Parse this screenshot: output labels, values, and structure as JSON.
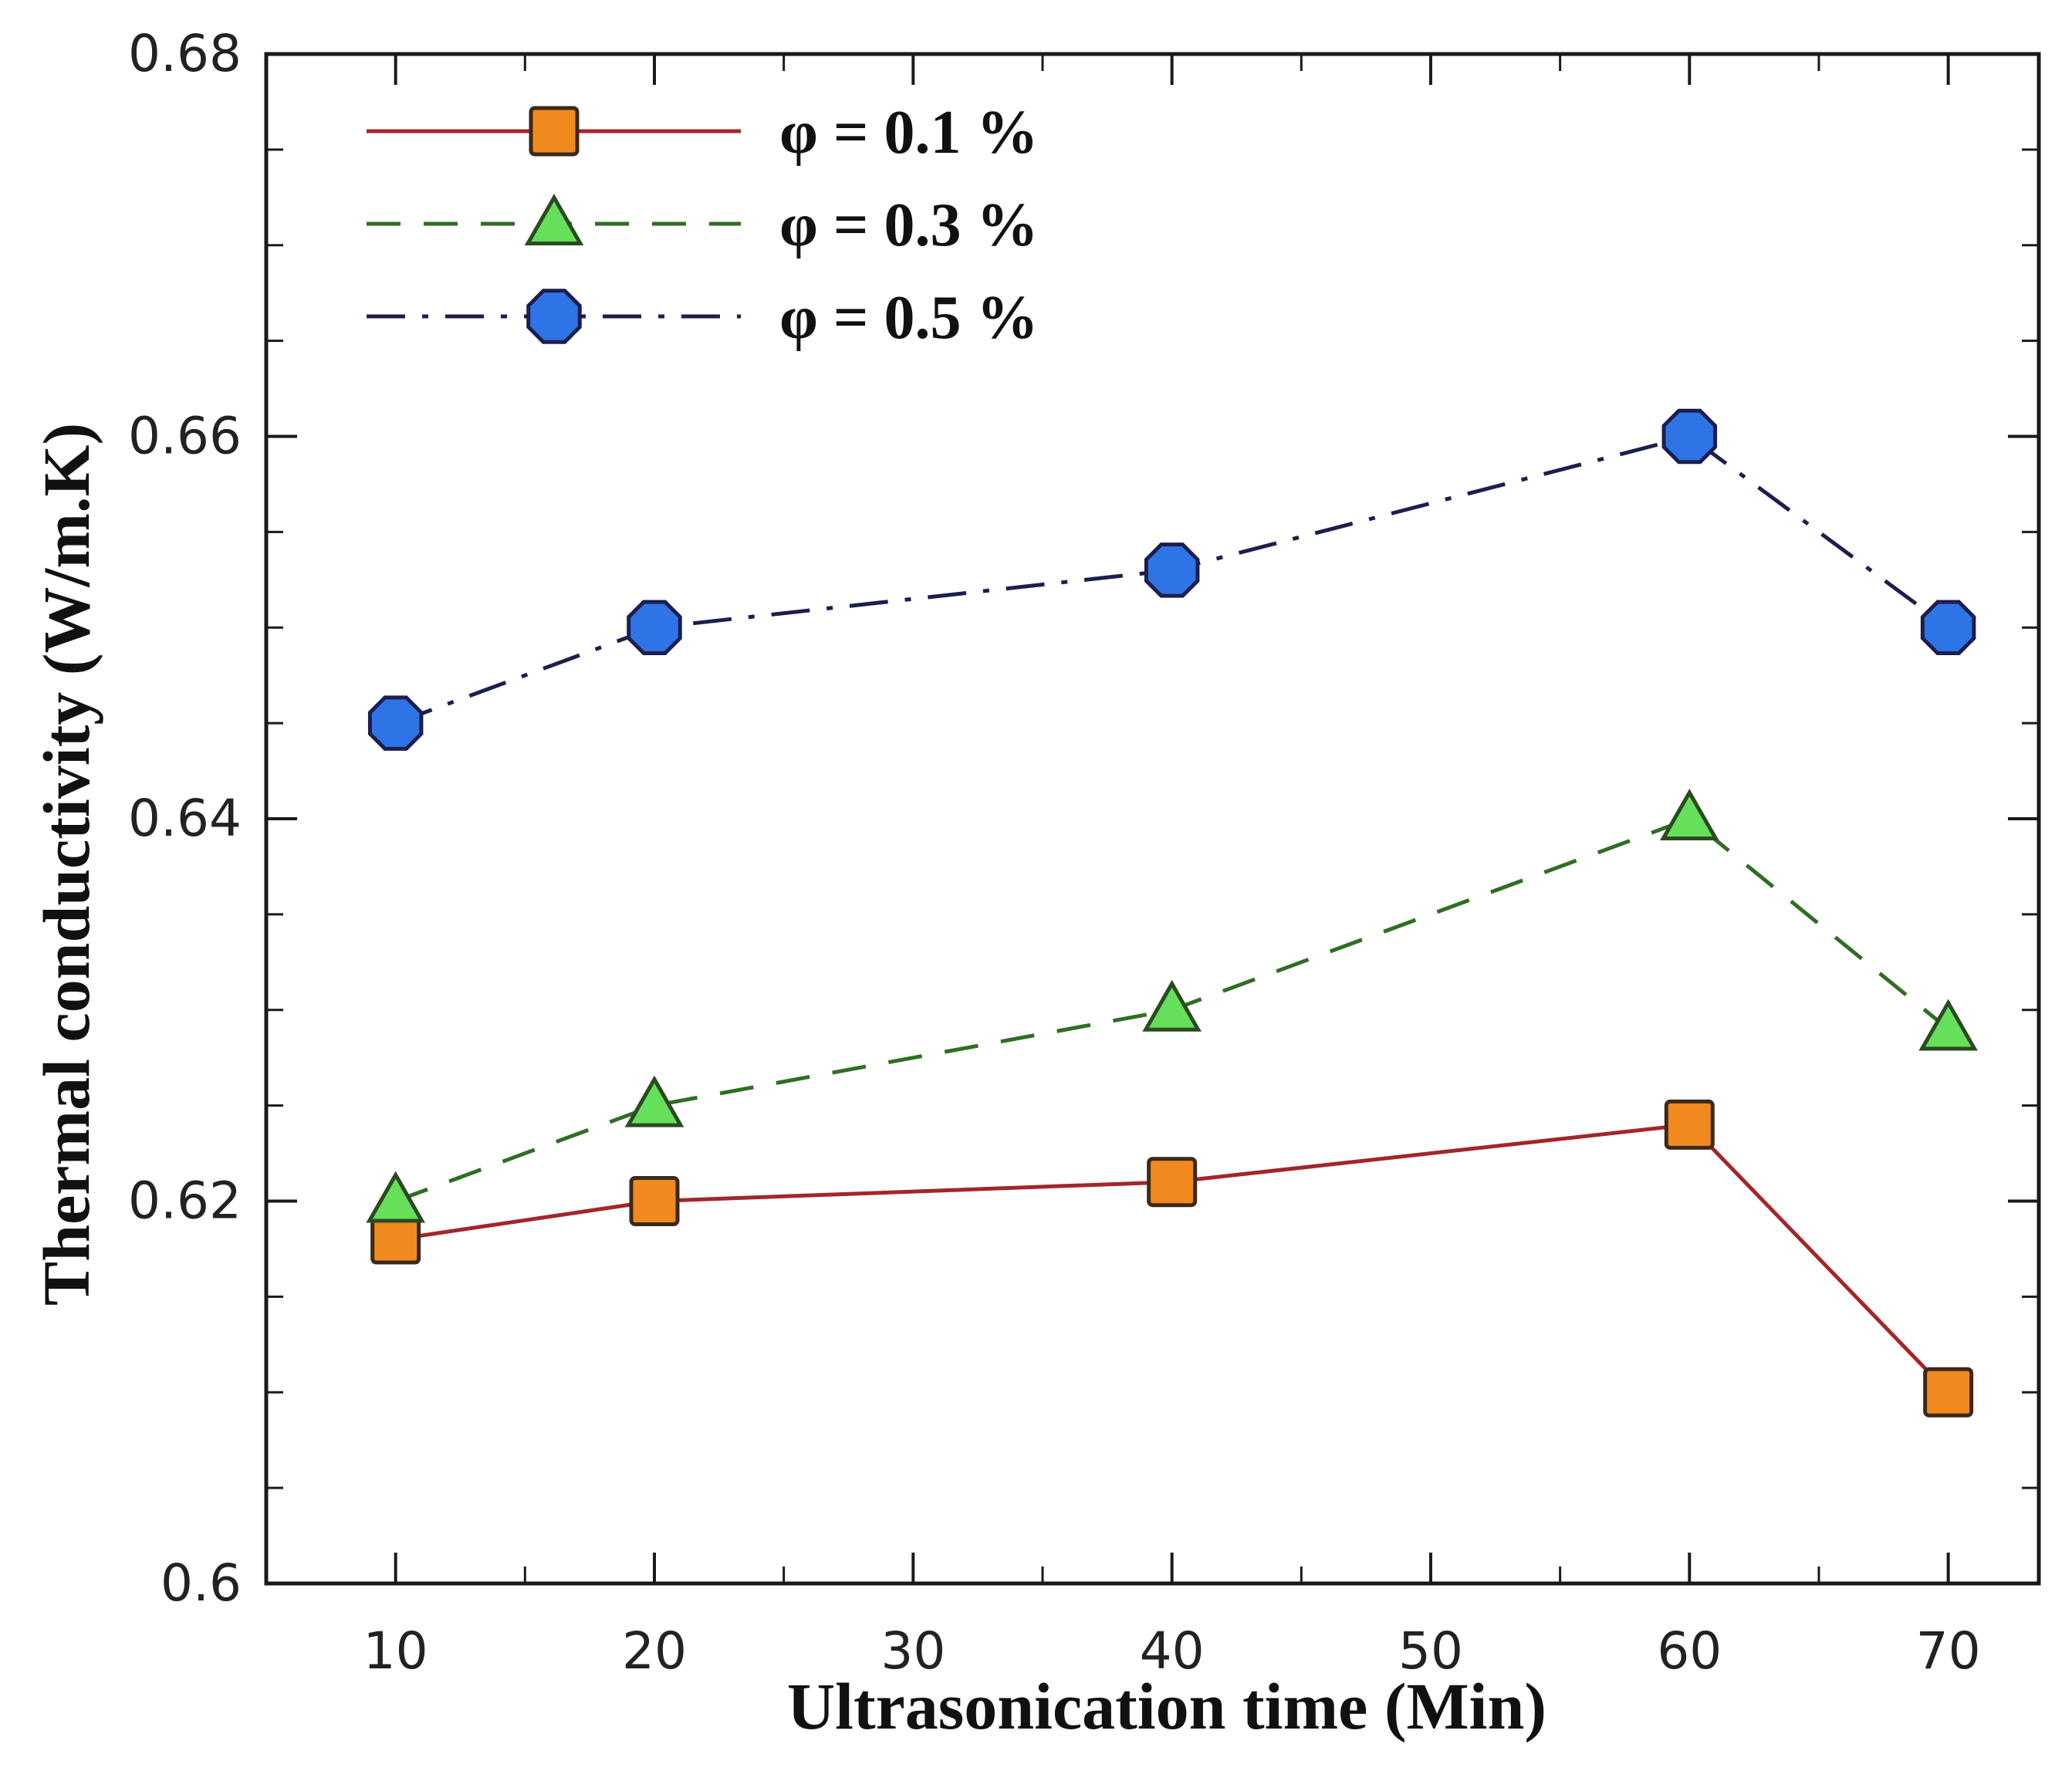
{
  "chart_data": {
    "type": "line",
    "title": "",
    "xlabel": "Ultrasonication time (Min)",
    "ylabel": "Thermal conductivity (W/m.K)",
    "xlim": [
      5,
      73.5
    ],
    "ylim": [
      0.6,
      0.68
    ],
    "x_ticks": [
      10,
      20,
      30,
      40,
      50,
      60,
      70
    ],
    "x_tick_labels": [
      "10",
      "20",
      "30",
      "40",
      "50",
      "60",
      "70"
    ],
    "y_ticks": [
      0.6,
      0.62,
      0.64,
      0.66,
      0.68
    ],
    "y_tick_labels": [
      "0.6",
      "0.62",
      "0.64",
      "0.66",
      "0.68"
    ],
    "grid": false,
    "legend_position": "top-left",
    "x": [
      10,
      20,
      40,
      60,
      70
    ],
    "series": [
      {
        "name": "φ = 0.1 %",
        "values": [
          0.618,
          0.62,
          0.621,
          0.624,
          0.61
        ],
        "marker": "square",
        "line_style": "solid",
        "line_color": "#a3262a",
        "marker_color": "#f08a1e"
      },
      {
        "name": "φ = 0.3 %",
        "values": [
          0.62,
          0.625,
          0.63,
          0.64,
          0.629
        ],
        "marker": "triangle",
        "line_style": "dashed",
        "line_color": "#2f6e23",
        "marker_color": "#66e05a"
      },
      {
        "name": "φ = 0.5 %",
        "values": [
          0.645,
          0.65,
          0.653,
          0.66,
          0.65
        ],
        "marker": "circle",
        "line_style": "dashdot",
        "line_color": "#1c1f4d",
        "marker_color": "#2f74e6"
      }
    ]
  }
}
